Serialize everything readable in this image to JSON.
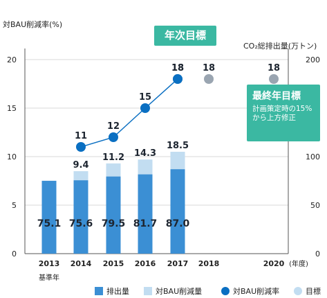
{
  "left_axis_title": "対BAU削減率(%)",
  "right_axis_title": "CO₂総排出量(万トン)",
  "callouts": {
    "target": "年次目標",
    "final_title": "最終年目標",
    "final_note": "計画策定時の15%から上方修正"
  },
  "base_year_label": "基準年",
  "unit_label": "(年度)",
  "legend": [
    "排出量",
    "対BAU削減量",
    "対BAU削減率",
    "目標"
  ],
  "colors": {
    "emissions": "#3b8fd4",
    "bau_reduction": "#c2ddf1",
    "rate": "#0a6fc2",
    "target": "#9aa5b1",
    "callout": "#3bb8a2"
  },
  "chart_data": {
    "type": "bar+line",
    "categories": [
      "2013",
      "2014",
      "2015",
      "2016",
      "2017",
      "2018",
      "2020"
    ],
    "left_axis": {
      "ticks": [
        0,
        5,
        10,
        15,
        20
      ],
      "ylim": [
        0,
        20
      ]
    },
    "right_axis": {
      "ticks": [
        0,
        50,
        100,
        150,
        200
      ],
      "ylim": [
        0,
        200
      ]
    },
    "emissions": [
      {
        "x": "2013",
        "value": 75.1
      },
      {
        "x": "2014",
        "value": 75.6
      },
      {
        "x": "2015",
        "value": 79.5
      },
      {
        "x": "2016",
        "value": 81.7
      },
      {
        "x": "2017",
        "value": 87.0
      }
    ],
    "bau_reduction_labels": [
      {
        "x": "2014",
        "label": "9.4",
        "value": 9.4
      },
      {
        "x": "2015",
        "label": "11.2",
        "value": 11.2
      },
      {
        "x": "2016",
        "label": "14.3",
        "value": 14.3
      },
      {
        "x": "2017",
        "label": "18.5",
        "value": 18.5
      }
    ],
    "bau_reduction_tops": [
      {
        "x": "2014",
        "value": 85
      },
      {
        "x": "2015",
        "value": 93
      },
      {
        "x": "2016",
        "value": 97
      },
      {
        "x": "2017",
        "value": 105
      }
    ],
    "reduction_rate": [
      {
        "x": "2014",
        "value": 11
      },
      {
        "x": "2015",
        "value": 12
      },
      {
        "x": "2016",
        "value": 15
      },
      {
        "x": "2017",
        "value": 18
      }
    ],
    "targets": [
      {
        "x": "2017",
        "value": 18
      },
      {
        "x": "2018",
        "value": 18
      },
      {
        "x": "2020",
        "value": 18
      }
    ]
  }
}
